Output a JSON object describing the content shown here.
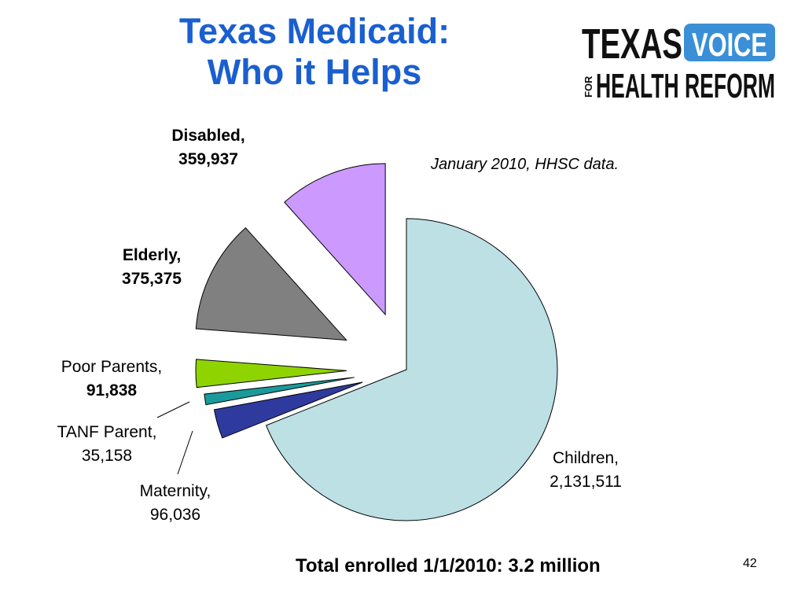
{
  "slide": {
    "title_line1": "Texas Medicaid:",
    "title_line2": "Who it Helps",
    "note": "January 2010, HHSC data.",
    "footer": "Total enrolled 1/1/2010: 3.2 million",
    "page_number": "42"
  },
  "logo": {
    "word_texas": "TEXAS",
    "word_voice": "VOICE",
    "word_for": "FOR",
    "word_health_reform": "HEALTH REFORM",
    "voice_color": "#3a8fd6"
  },
  "chart_data": {
    "type": "pie",
    "exploded": true,
    "slices": [
      {
        "name": "Children,",
        "value": "2,131,511",
        "numeric": 2131511,
        "color": "#bce0e4"
      },
      {
        "name": "Maternity,",
        "value": "96,036",
        "numeric": 96036,
        "color": "#2f3a9e"
      },
      {
        "name": "TANF Parent,",
        "value": "35,158",
        "numeric": 35158,
        "color": "#1a9a9a"
      },
      {
        "name": "Poor Parents,",
        "value": "91,838",
        "numeric": 91838,
        "color": "#8fd400"
      },
      {
        "name": "Elderly,",
        "value": "375,375",
        "numeric": 375375,
        "color": "#808080"
      },
      {
        "name": "Disabled,",
        "value": "359,937",
        "numeric": 359937,
        "color": "#cc99ff"
      }
    ]
  }
}
